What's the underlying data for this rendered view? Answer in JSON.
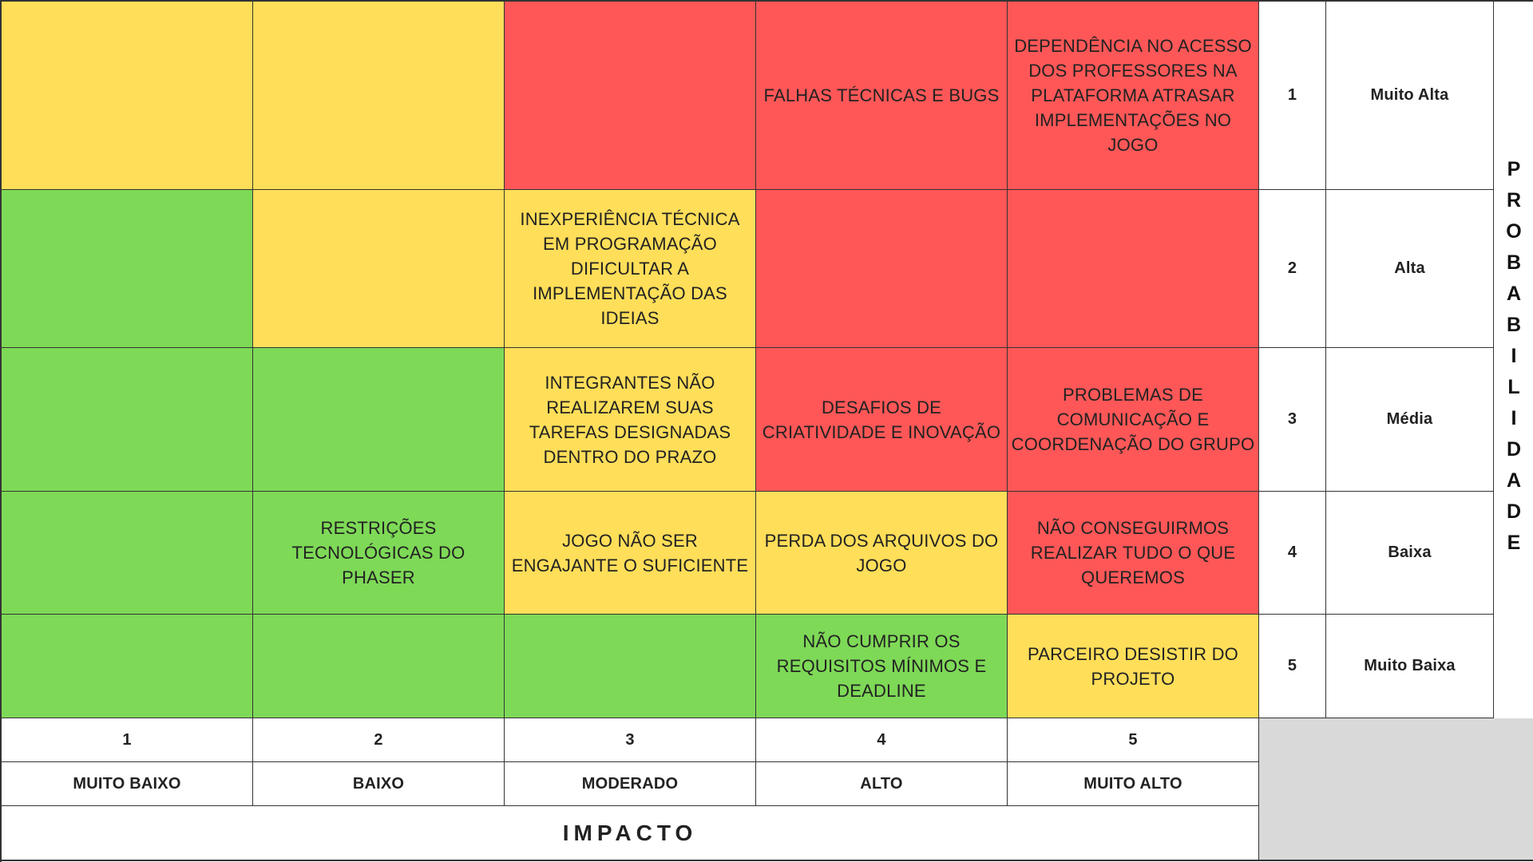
{
  "probability_axis_label": "PROBABILIDADE",
  "impact_axis_label": "IMPACTO",
  "colors": {
    "green": "#7ed957",
    "yellow": "#ffde59",
    "red": "#ff5757",
    "corner_gray": "#d9d9d9"
  },
  "probability_levels": [
    {
      "number": "1",
      "label": "Muito Alta"
    },
    {
      "number": "2",
      "label": "Alta"
    },
    {
      "number": "3",
      "label": "Média"
    },
    {
      "number": "4",
      "label": "Baixa"
    },
    {
      "number": "5",
      "label": "Muito Baixa"
    }
  ],
  "impact_levels": [
    {
      "number": "1",
      "label": "MUITO BAIXO"
    },
    {
      "number": "2",
      "label": "BAIXO"
    },
    {
      "number": "3",
      "label": "MODERADO"
    },
    {
      "number": "4",
      "label": "ALTO"
    },
    {
      "number": "5",
      "label": "MUITO ALTO"
    }
  ],
  "rows": [
    {
      "cells": [
        {
          "color": "yellow",
          "text": ""
        },
        {
          "color": "yellow",
          "text": ""
        },
        {
          "color": "red",
          "text": ""
        },
        {
          "color": "red",
          "text": "FALHAS TÉCNICAS E BUGS"
        },
        {
          "color": "red",
          "text": "DEPENDÊNCIA NO ACESSO DOS PROFESSORES NA PLATAFORMA ATRASAR IMPLEMENTAÇÕES NO JOGO"
        }
      ]
    },
    {
      "cells": [
        {
          "color": "green",
          "text": ""
        },
        {
          "color": "yellow",
          "text": ""
        },
        {
          "color": "yellow",
          "text": "INEXPERIÊNCIA TÉCNICA EM PROGRAMAÇÃO DIFICULTAR A IMPLEMENTAÇÃO DAS IDEIAS"
        },
        {
          "color": "red",
          "text": ""
        },
        {
          "color": "red",
          "text": ""
        }
      ]
    },
    {
      "cells": [
        {
          "color": "green",
          "text": ""
        },
        {
          "color": "green",
          "text": ""
        },
        {
          "color": "yellow",
          "text": "INTEGRANTES NÃO REALIZAREM SUAS TAREFAS DESIGNADAS DENTRO DO PRAZO"
        },
        {
          "color": "red",
          "text": "DESAFIOS DE CRIATIVIDADE E INOVAÇÃO"
        },
        {
          "color": "red",
          "text": "PROBLEMAS DE COMUNICAÇÃO E COORDENAÇÃO DO GRUPO"
        }
      ]
    },
    {
      "cells": [
        {
          "color": "green",
          "text": ""
        },
        {
          "color": "green",
          "text": "RESTRIÇÕES TECNOLÓGICAS DO PHASER"
        },
        {
          "color": "yellow",
          "text": "JOGO NÃO SER ENGAJANTE O SUFICIENTE"
        },
        {
          "color": "yellow",
          "text": "PERDA DOS ARQUIVOS DO JOGO"
        },
        {
          "color": "red",
          "text": "NÃO CONSEGUIRMOS REALIZAR TUDO O QUE QUEREMOS"
        }
      ]
    },
    {
      "cells": [
        {
          "color": "green",
          "text": ""
        },
        {
          "color": "green",
          "text": ""
        },
        {
          "color": "green",
          "text": ""
        },
        {
          "color": "green",
          "text": "NÃO CUMPRIR OS REQUISITOS MÍNIMOS E DEADLINE"
        },
        {
          "color": "yellow",
          "text": "PARCEIRO DESISTIR DO PROJETO"
        }
      ]
    }
  ]
}
